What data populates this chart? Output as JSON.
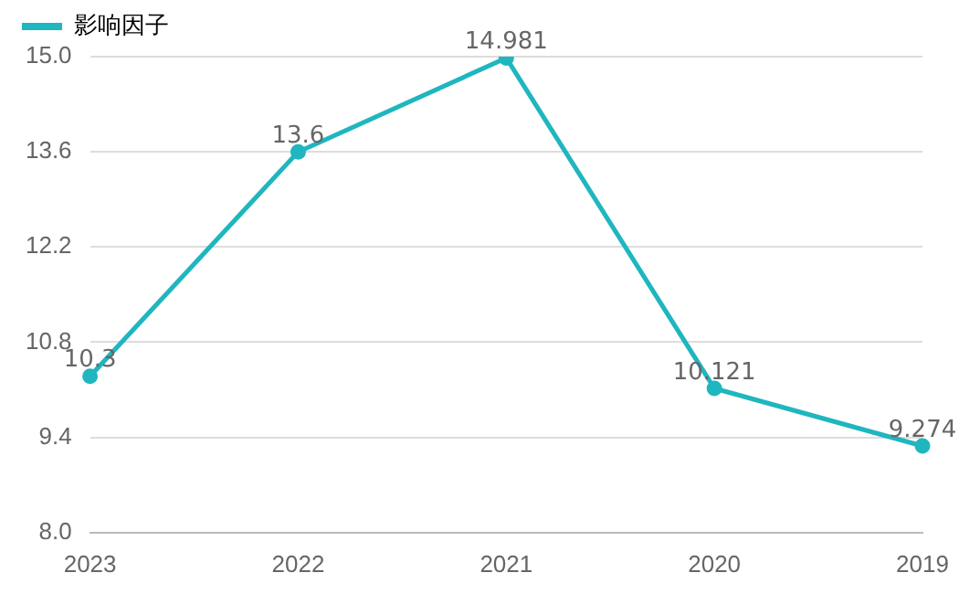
{
  "chart_data": {
    "type": "line",
    "categories": [
      "2023",
      "2022",
      "2021",
      "2020",
      "2019"
    ],
    "series": [
      {
        "name": "影响因子",
        "color": "#1fb6bf",
        "values": [
          10.3,
          13.6,
          14.981,
          10.121,
          9.274
        ]
      }
    ],
    "ylim": [
      8.0,
      15.0
    ],
    "yticks": [
      {
        "value": 8,
        "label": "8.0"
      },
      {
        "value": 9.4,
        "label": "9.4"
      },
      {
        "value": 10.8,
        "label": "10.8"
      },
      {
        "value": 12.2,
        "label": "12.2"
      },
      {
        "value": 13.6,
        "label": "13.6"
      },
      {
        "value": 15,
        "label": "15.0"
      }
    ],
    "grid": "y",
    "legend": "top left",
    "marker": "circle",
    "data_labels": true
  }
}
